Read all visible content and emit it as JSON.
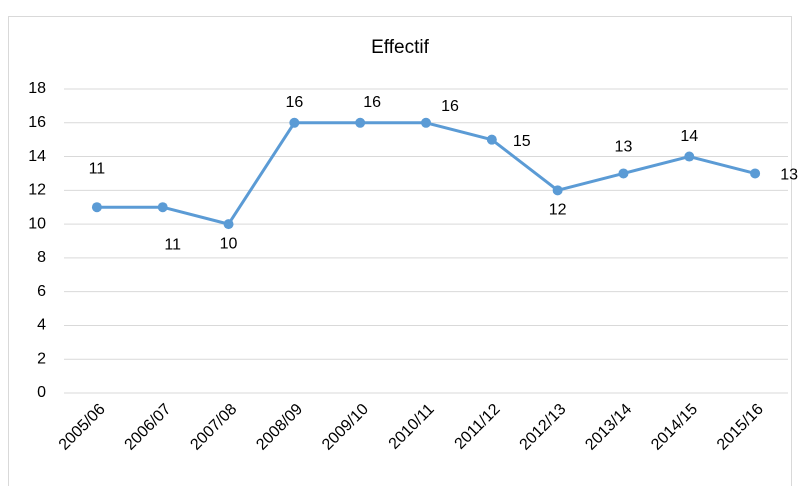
{
  "chart_data": {
    "type": "line",
    "title": "Effectif",
    "categories": [
      "2005/06",
      "2006/07",
      "2007/08",
      "2008/09",
      "2009/10",
      "2010/11",
      "2011/12",
      "2012/13",
      "2013/14",
      "2014/15",
      "2015/16"
    ],
    "series": [
      {
        "name": "Effectif",
        "color": "#5b9bd5",
        "values": [
          11,
          11,
          10,
          16,
          16,
          16,
          15,
          12,
          13,
          14,
          13
        ]
      }
    ],
    "ylim": [
      0,
      18
    ],
    "yticks": [
      0,
      2,
      4,
      6,
      8,
      10,
      12,
      14,
      16,
      18
    ],
    "grid": true
  }
}
